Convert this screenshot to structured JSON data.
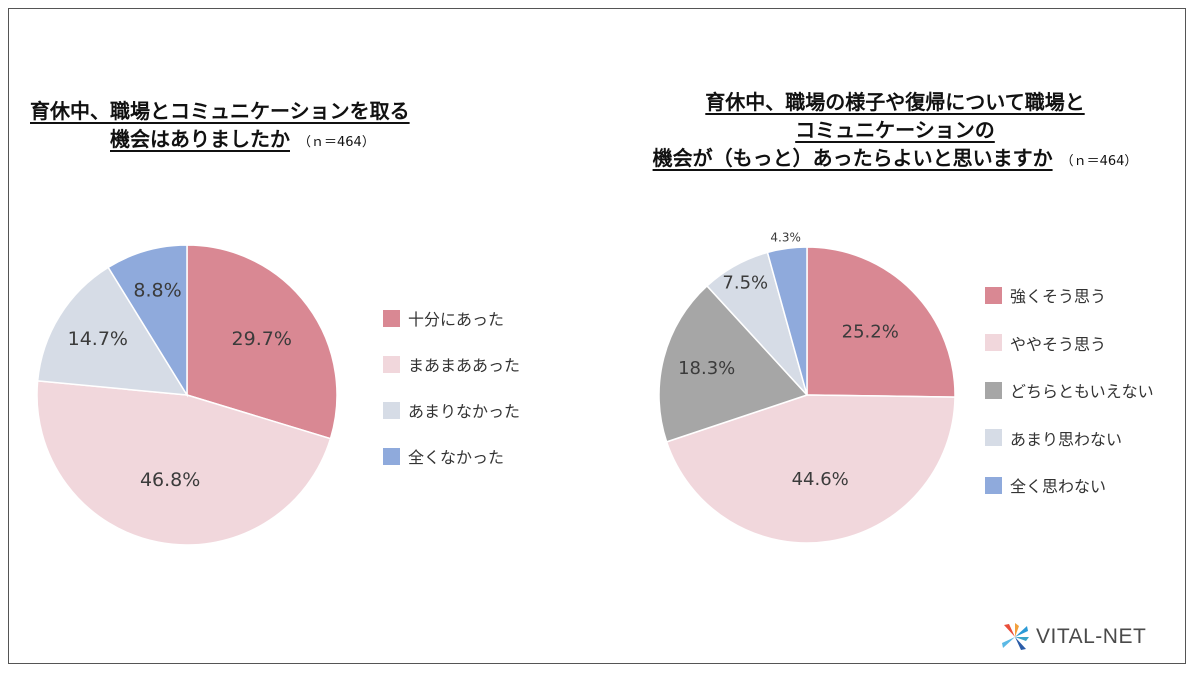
{
  "brand": {
    "name": "VITAL-NET"
  },
  "colors": {
    "strong": "#d98893",
    "light_pink": "#f1d7dc",
    "gray": "#a6a6a6",
    "light_gray": "#d6dce6",
    "blue": "#8faadc",
    "border": "#555555"
  },
  "chart_data": [
    {
      "type": "pie",
      "title_lines": [
        "育休中、職場とコミュニケーションを取る",
        "機会はありましたか"
      ],
      "n_label": "（ｎ＝464）",
      "categories": [
        "十分にあった",
        "まあまああった",
        "あまりなかった",
        "全くなかった"
      ],
      "values": [
        29.7,
        46.8,
        14.7,
        8.8
      ],
      "value_labels": [
        "29.7%",
        "46.8%",
        "14.7%",
        "8.8%"
      ],
      "colors": [
        "#d98893",
        "#f1d7dc",
        "#d6dce6",
        "#8faadc"
      ],
      "start": "12 o'clock",
      "direction": "clockwise",
      "legend": "right"
    },
    {
      "type": "pie",
      "title_lines": [
        "育休中、職場の様子や復帰について職場と",
        "コミュニケーションの",
        "機会が（もっと）あったらよいと思いますか"
      ],
      "n_label": "（ｎ＝464）",
      "categories": [
        "強くそう思う",
        "ややそう思う",
        "どちらともいえない",
        "あまり思わない",
        "全く思わない"
      ],
      "values": [
        25.2,
        44.6,
        18.3,
        7.5,
        4.3
      ],
      "value_labels": [
        "25.2%",
        "44.6%",
        "18.3%",
        "7.5%",
        "4.3%"
      ],
      "colors": [
        "#d98893",
        "#f1d7dc",
        "#a6a6a6",
        "#d6dce6",
        "#8faadc"
      ],
      "start": "12 o'clock",
      "direction": "clockwise",
      "legend": "right"
    }
  ]
}
